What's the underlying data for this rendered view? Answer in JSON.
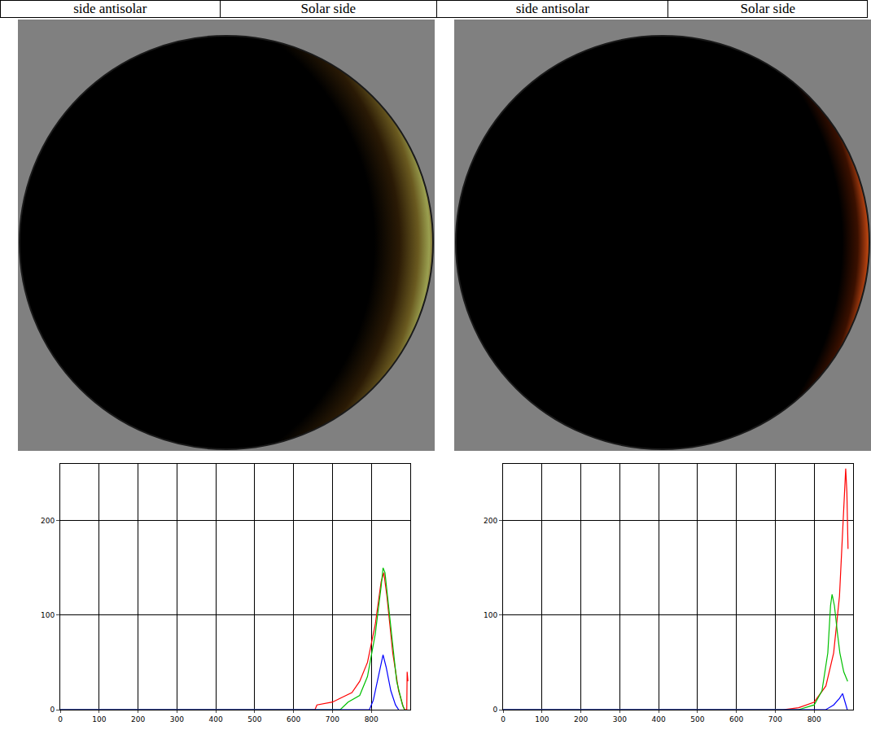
{
  "headers": [
    "side antisolar",
    "Solar side",
    "side antisolar",
    "Solar side"
  ],
  "chart_data": [
    {
      "type": "line",
      "xlim": [
        0,
        900
      ],
      "xticks": [
        0,
        100,
        200,
        300,
        400,
        500,
        600,
        700,
        800
      ],
      "ylim": [
        0,
        260
      ],
      "yticks": [
        0,
        100,
        200
      ],
      "grid": true,
      "series": [
        {
          "color": "#ff0000",
          "x": [
            0,
            655,
            660,
            700,
            720,
            750,
            770,
            790,
            810,
            825,
            832,
            840,
            855,
            870,
            882,
            886,
            891,
            892,
            894
          ],
          "values": [
            0,
            0,
            5,
            8,
            12,
            18,
            30,
            50,
            90,
            135,
            145,
            120,
            60,
            20,
            3,
            0,
            0,
            40,
            30
          ]
        },
        {
          "color": "#00c000",
          "x": [
            0,
            720,
            740,
            770,
            790,
            810,
            825,
            830,
            835,
            850,
            865,
            880,
            885
          ],
          "values": [
            0,
            0,
            8,
            15,
            35,
            80,
            130,
            150,
            145,
            90,
            30,
            5,
            0
          ]
        },
        {
          "color": "#0000ff",
          "x": [
            0,
            795,
            805,
            815,
            825,
            830,
            838,
            850,
            862,
            870
          ],
          "values": [
            0,
            0,
            10,
            30,
            50,
            58,
            45,
            20,
            5,
            0
          ]
        }
      ]
    },
    {
      "type": "line",
      "xlim": [
        0,
        900
      ],
      "xticks": [
        0,
        100,
        200,
        300,
        400,
        500,
        600,
        700,
        800
      ],
      "ylim": [
        0,
        260
      ],
      "yticks": [
        0,
        100,
        200
      ],
      "grid": true,
      "series": [
        {
          "color": "#ff0000",
          "x": [
            0,
            720,
            760,
            800,
            830,
            850,
            865,
            875,
            881,
            884,
            886,
            887
          ],
          "values": [
            0,
            0,
            2,
            8,
            25,
            60,
            120,
            200,
            255,
            230,
            200,
            170
          ]
        },
        {
          "color": "#00c000",
          "x": [
            0,
            760,
            800,
            820,
            835,
            842,
            846,
            852,
            860,
            866,
            876,
            886
          ],
          "values": [
            0,
            0,
            5,
            20,
            60,
            110,
            122,
            110,
            80,
            60,
            40,
            30
          ]
        },
        {
          "color": "#0000ff",
          "x": [
            0,
            830,
            850,
            865,
            873,
            880,
            885
          ],
          "values": [
            0,
            0,
            5,
            12,
            17,
            8,
            0
          ]
        }
      ]
    }
  ]
}
